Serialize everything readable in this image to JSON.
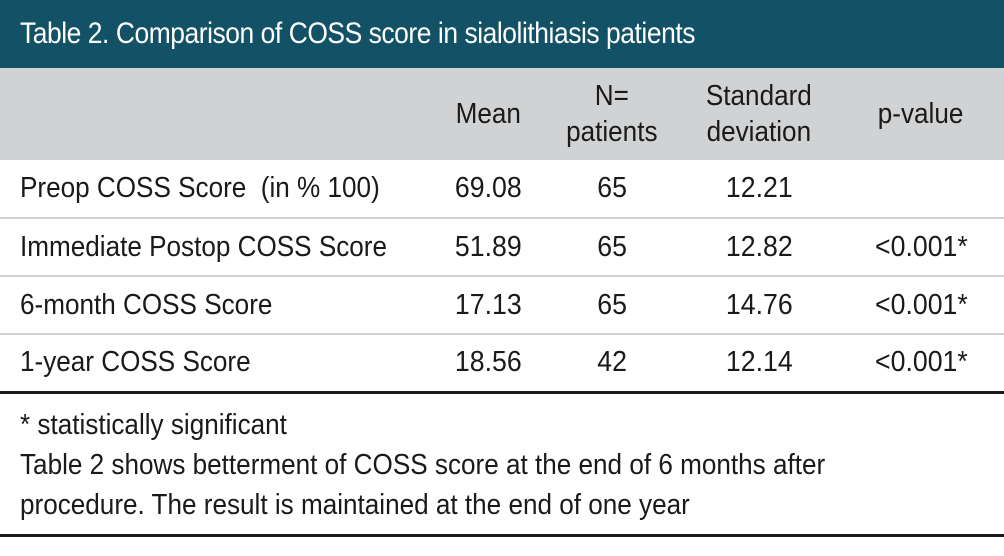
{
  "title": "Table 2. Comparison of COSS score in sialolithiasis patients",
  "table": {
    "headers": {
      "label": "",
      "mean": "Mean",
      "n_line1": "N=",
      "n_line2": "patients",
      "sd_line1": "Standard",
      "sd_line2": "deviation",
      "pvalue": "p-value"
    },
    "rows": [
      {
        "label": "Preop COSS Score  (in % 100)",
        "mean": "69.08",
        "n": "65",
        "sd": "12.21",
        "p": ""
      },
      {
        "label": "Immediate Postop COSS Score",
        "mean": "51.89",
        "n": "65",
        "sd": "12.82",
        "p": "<0.001*"
      },
      {
        "label": "6-month COSS Score",
        "mean": "17.13",
        "n": "65",
        "sd": "14.76",
        "p": "<0.001*"
      },
      {
        "label": "1-year COSS Score",
        "mean": "18.56",
        "n": "42",
        "sd": "12.14",
        "p": "<0.001*"
      }
    ]
  },
  "notes": {
    "footnote": "* statistically significant",
    "line1": "Table 2 shows betterment of COSS score at the end of 6 months after",
    "line2": "procedure. The result is maintained at the end of one year"
  },
  "colors": {
    "title_bar": "#135266",
    "header_row": "#d0d2d4",
    "text": "#1a1a1a"
  }
}
